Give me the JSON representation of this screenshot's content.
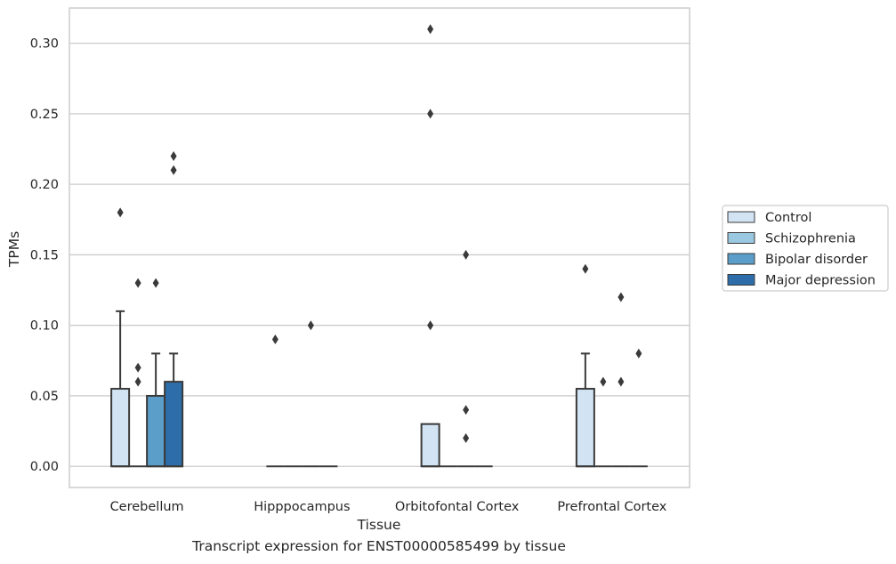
{
  "caption": "Transcript expression for ENST00000585499 by tissue",
  "chart_data": {
    "type": "box",
    "xlabel": "Tissue",
    "ylabel": "TPMs",
    "ylim": [
      -0.015,
      0.325
    ],
    "yticks": [
      0.0,
      0.05,
      0.1,
      0.15,
      0.2,
      0.25,
      0.3
    ],
    "ytick_labels": [
      "0.00",
      "0.05",
      "0.10",
      "0.15",
      "0.20",
      "0.25",
      "0.30"
    ],
    "grid": "horizontal",
    "legend_position": "right",
    "categories": [
      "Cerebellum",
      "Hipppocampus",
      "Orbitofontal Cortex",
      "Prefrontal Cortex"
    ],
    "series": [
      {
        "name": "Control",
        "color": "#d2e3f3",
        "boxes": [
          {
            "q1": 0,
            "median": 0,
            "q3": 0.055,
            "whisker_low": 0,
            "whisker_high": 0.11,
            "outliers": [
              0.18
            ]
          },
          {
            "q1": 0,
            "median": 0,
            "q3": 0,
            "whisker_low": 0,
            "whisker_high": 0,
            "outliers": [
              0.09
            ]
          },
          {
            "q1": 0,
            "median": 0,
            "q3": 0.03,
            "whisker_low": 0,
            "whisker_high": 0.03,
            "outliers": [
              0.1,
              0.25,
              0.31
            ]
          },
          {
            "q1": 0,
            "median": 0,
            "q3": 0.055,
            "whisker_low": 0,
            "whisker_high": 0.08,
            "outliers": [
              0.14
            ]
          }
        ]
      },
      {
        "name": "Schizophrenia",
        "color": "#9ac8e0",
        "boxes": [
          {
            "q1": 0,
            "median": 0,
            "q3": 0,
            "whisker_low": 0,
            "whisker_high": 0,
            "outliers": [
              0.06,
              0.07,
              0.13
            ]
          },
          {
            "q1": 0,
            "median": 0,
            "q3": 0,
            "whisker_low": 0,
            "whisker_high": 0,
            "outliers": []
          },
          {
            "q1": 0,
            "median": 0,
            "q3": 0,
            "whisker_low": 0,
            "whisker_high": 0,
            "outliers": []
          },
          {
            "q1": 0,
            "median": 0,
            "q3": 0,
            "whisker_low": 0,
            "whisker_high": 0,
            "outliers": [
              0.06
            ]
          }
        ]
      },
      {
        "name": "Bipolar disorder",
        "color": "#5a9ec9",
        "boxes": [
          {
            "q1": 0,
            "median": 0,
            "q3": 0.05,
            "whisker_low": 0,
            "whisker_high": 0.08,
            "outliers": [
              0.13
            ]
          },
          {
            "q1": 0,
            "median": 0,
            "q3": 0,
            "whisker_low": 0,
            "whisker_high": 0,
            "outliers": [
              0.1
            ]
          },
          {
            "q1": 0,
            "median": 0,
            "q3": 0,
            "whisker_low": 0,
            "whisker_high": 0,
            "outliers": [
              0.02,
              0.04,
              0.15
            ]
          },
          {
            "q1": 0,
            "median": 0,
            "q3": 0,
            "whisker_low": 0,
            "whisker_high": 0,
            "outliers": [
              0.06,
              0.12
            ]
          }
        ]
      },
      {
        "name": "Major depression",
        "color": "#2d6eaa",
        "boxes": [
          {
            "q1": 0,
            "median": 0,
            "q3": 0.06,
            "whisker_low": 0,
            "whisker_high": 0.08,
            "outliers": [
              0.21,
              0.22
            ]
          },
          {
            "q1": 0,
            "median": 0,
            "q3": 0,
            "whisker_low": 0,
            "whisker_high": 0,
            "outliers": []
          },
          {
            "q1": 0,
            "median": 0,
            "q3": 0,
            "whisker_low": 0,
            "whisker_high": 0,
            "outliers": []
          },
          {
            "q1": 0,
            "median": 0,
            "q3": 0,
            "whisker_low": 0,
            "whisker_high": 0,
            "outliers": [
              0.08
            ]
          }
        ]
      }
    ]
  }
}
